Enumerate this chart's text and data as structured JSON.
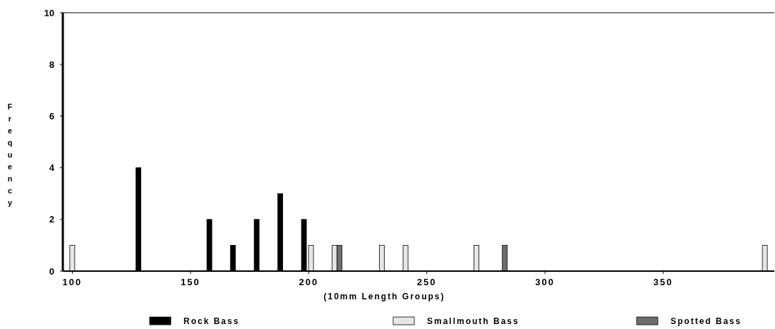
{
  "chart_data": {
    "type": "bar",
    "xlabel": "(10mm Length Groups)",
    "ylabel": "Frequency",
    "xlim": [
      96,
      397
    ],
    "xticks": [
      100,
      150,
      200,
      250,
      300,
      350
    ],
    "ylim": [
      0,
      10
    ],
    "yticks": [
      0,
      2,
      4,
      6,
      8,
      10
    ],
    "series": [
      {
        "name": "Rock Bass",
        "color": "#000000",
        "x": [
          128,
          158,
          168,
          178,
          188,
          198
        ],
        "values": [
          4,
          2,
          1,
          2,
          3,
          2
        ]
      },
      {
        "name": "Smallmouth Bass",
        "color": "#e6e6e6",
        "x": [
          100,
          201,
          211,
          231,
          241,
          271,
          393
        ],
        "values": [
          1,
          1,
          1,
          1,
          1,
          1,
          1
        ]
      },
      {
        "name": "Spotted Bass",
        "color": "#6e6e6e",
        "x": [
          213,
          283
        ],
        "values": [
          1,
          1
        ]
      }
    ],
    "grid": false,
    "legend": "bottom"
  }
}
